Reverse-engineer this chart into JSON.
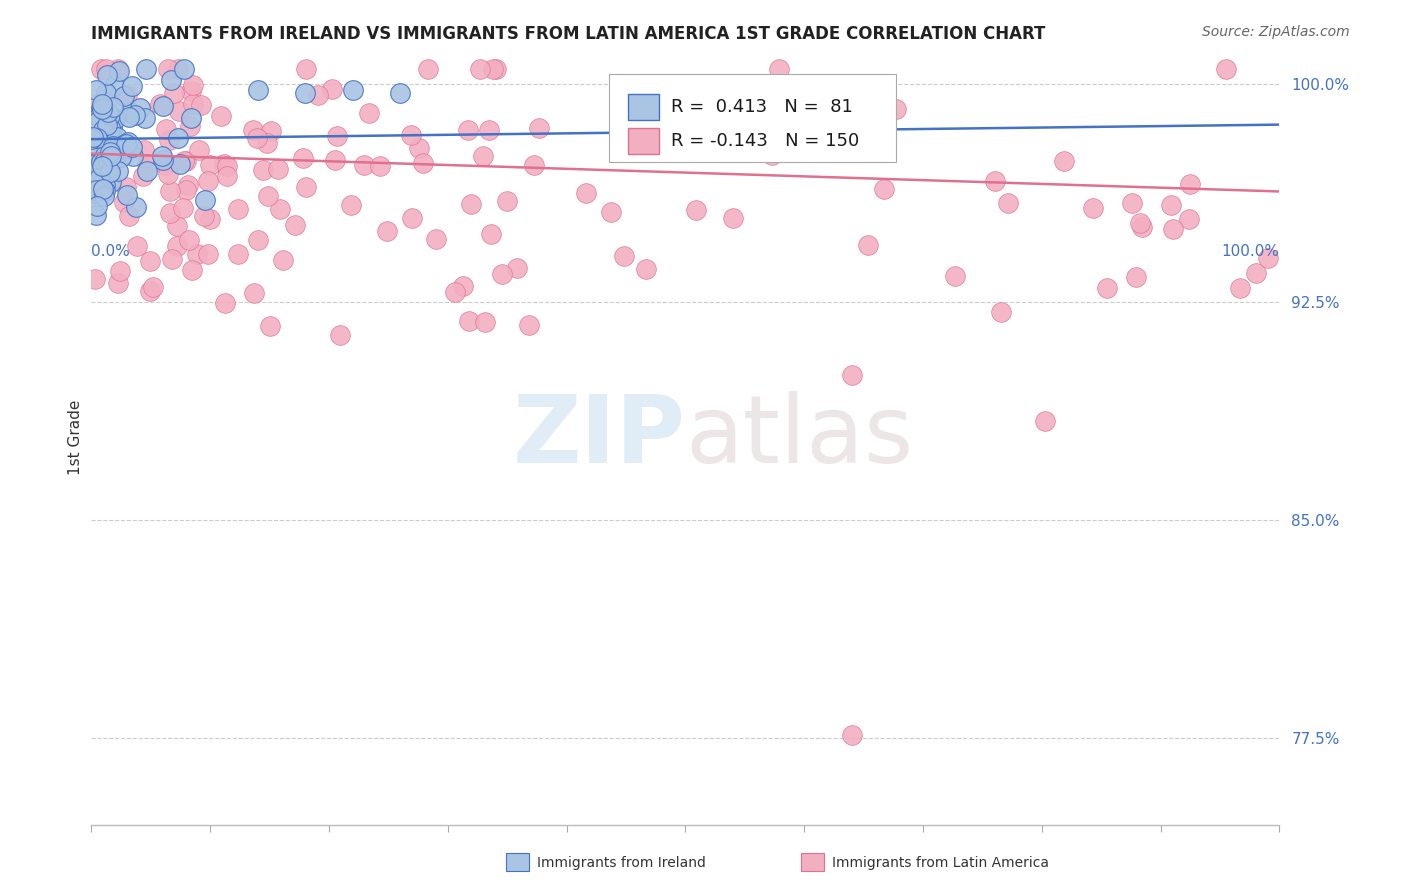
{
  "title": "IMMIGRANTS FROM IRELAND VS IMMIGRANTS FROM LATIN AMERICA 1ST GRADE CORRELATION CHART",
  "source": "Source: ZipAtlas.com",
  "ylabel": "1st Grade",
  "ytick_values": [
    0.775,
    0.85,
    0.925,
    1.0
  ],
  "xlim": [
    0.0,
    1.0
  ],
  "ylim": [
    0.745,
    1.012
  ],
  "legend_R_ireland": "0.413",
  "legend_N_ireland": "81",
  "legend_R_latin": "-0.143",
  "legend_N_latin": "150",
  "ireland_color": "#aac4e4",
  "ireland_edge_color": "#4472c4",
  "ireland_line_color": "#4472c4",
  "latin_color": "#f2afc2",
  "latin_edge_color": "#e07090",
  "latin_line_color": "#e07090",
  "title_fontsize": 12,
  "source_fontsize": 10,
  "label_fontsize": 11,
  "tick_fontsize": 11,
  "background_color": "#ffffff",
  "grid_color": "#cccccc",
  "watermark_zip": "ZIP",
  "watermark_atlas": "atlas",
  "ytick_color": "#4472c4",
  "xtick_color": "#4472c4"
}
